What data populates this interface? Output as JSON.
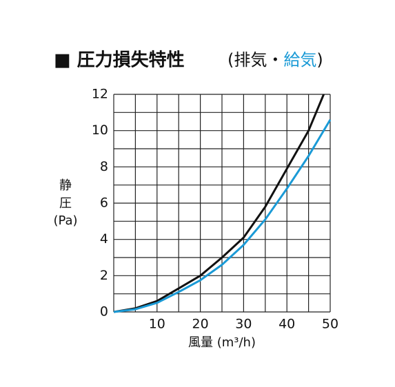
{
  "chart_data": {
    "type": "line",
    "title": "■ 圧力損失特性",
    "legend_open": "(",
    "legend_sep": "・",
    "legend_close": ")",
    "x_label": "風量 (m³/h)",
    "y_label": [
      "静",
      "圧",
      "(Pa)"
    ],
    "series": [
      {
        "name": "排気",
        "color": "#111111",
        "x": [
          0,
          5,
          10,
          15,
          20,
          25,
          30,
          35,
          40,
          45,
          48.5
        ],
        "values": [
          0,
          0.2,
          0.6,
          1.3,
          2.0,
          3.0,
          4.1,
          5.8,
          7.9,
          10.0,
          12
        ]
      },
      {
        "name": "給気",
        "color": "#1a9ad6",
        "x": [
          0,
          5,
          10,
          15,
          20,
          25,
          30,
          35,
          40,
          45,
          50
        ],
        "values": [
          0,
          0.15,
          0.5,
          1.1,
          1.75,
          2.6,
          3.7,
          5.1,
          6.8,
          8.6,
          10.6
        ]
      }
    ],
    "xlim": [
      0,
      50
    ],
    "ylim": [
      0,
      12
    ],
    "xticks": [
      10,
      20,
      30,
      40,
      50
    ],
    "yticks": [
      0,
      2,
      4,
      6,
      8,
      10,
      12
    ],
    "xgrid": [
      0,
      5,
      10,
      15,
      20,
      25,
      30,
      35,
      40,
      45,
      50
    ],
    "ygrid": [
      0,
      1,
      2,
      3,
      4,
      5,
      6,
      7,
      8,
      9,
      10,
      11,
      12
    ]
  }
}
